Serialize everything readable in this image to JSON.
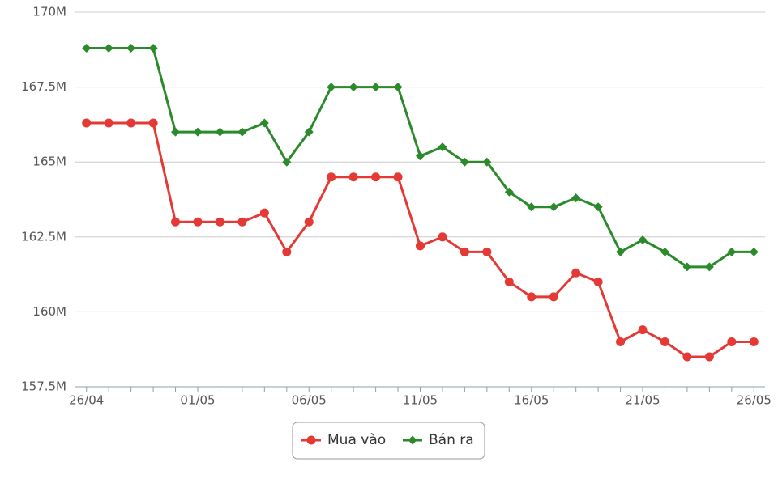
{
  "chart_data": {
    "type": "line",
    "categories": [
      "26/04",
      null,
      null,
      null,
      null,
      "01/05",
      null,
      null,
      null,
      null,
      "06/05",
      null,
      null,
      null,
      null,
      "11/05",
      null,
      null,
      null,
      null,
      "16/05",
      null,
      null,
      null,
      null,
      "21/05",
      null,
      null,
      null,
      null,
      "26/05"
    ],
    "series": [
      {
        "name": "Mua vào",
        "color": "#e53935",
        "marker": "circle",
        "values": [
          166.3,
          166.3,
          166.3,
          166.3,
          163,
          163,
          163,
          163,
          163.3,
          162,
          163,
          164.5,
          164.5,
          164.5,
          164.5,
          162.2,
          162.5,
          162,
          162,
          161,
          160.5,
          160.5,
          161.3,
          161,
          159,
          159.4,
          159,
          158.5,
          158.5,
          159,
          159
        ]
      },
      {
        "name": "Bán ra",
        "color": "#2b8a2b",
        "marker": "diamond",
        "values": [
          168.8,
          168.8,
          168.8,
          168.8,
          166,
          166,
          166,
          166,
          166.3,
          165,
          166,
          167.5,
          167.5,
          167.5,
          167.5,
          165.2,
          165.5,
          165,
          165,
          164,
          163.5,
          163.5,
          163.8,
          163.5,
          162,
          162.4,
          162,
          161.5,
          161.5,
          162,
          162
        ]
      }
    ],
    "ylim": [
      157.5,
      170
    ],
    "yticks": [
      {
        "value": 157.5,
        "label": "157.5M"
      },
      {
        "value": 160,
        "label": "160M"
      },
      {
        "value": 162.5,
        "label": "162.5M"
      },
      {
        "value": 165,
        "label": "165M"
      },
      {
        "value": 167.5,
        "label": "167.5M"
      },
      {
        "value": 170,
        "label": "170M"
      }
    ],
    "grid": true,
    "legend": "bottom"
  }
}
